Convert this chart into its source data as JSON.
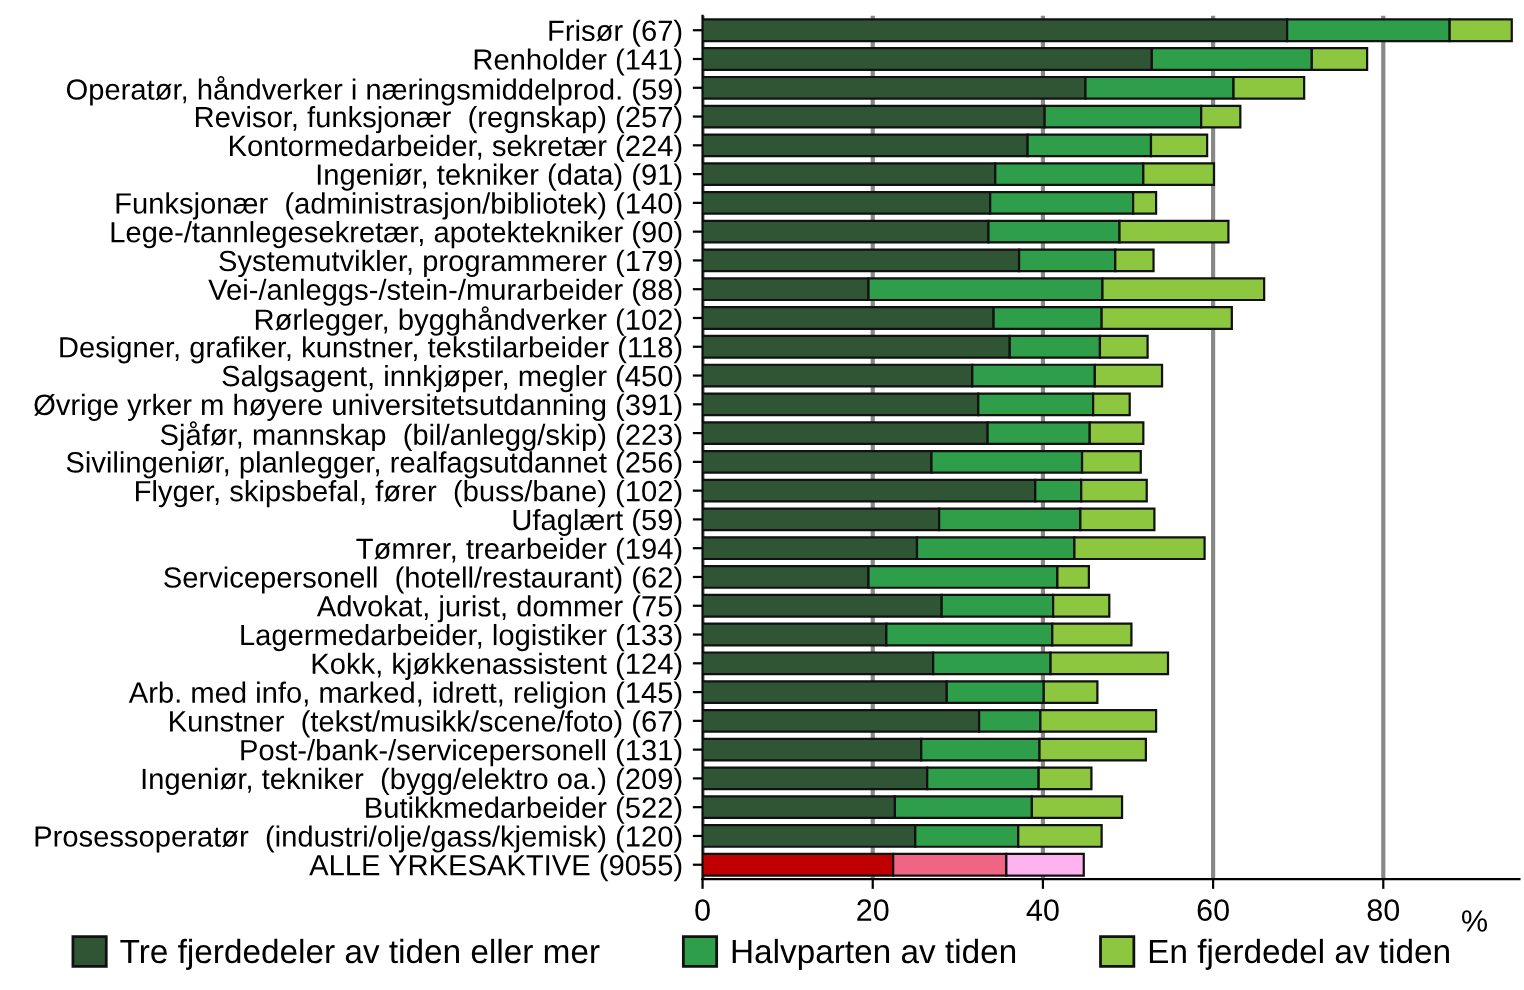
{
  "chart_data": {
    "type": "bar",
    "orientation": "horizontal",
    "stacked": true,
    "xlabel": "%",
    "categories": [
      "Frisør (67)",
      "Renholder (141)",
      "Operatør, håndverker i næringsmiddelprod. (59)",
      "Revisor, funksjonær  (regnskap) (257)",
      "Kontormedarbeider, sekretær (224)",
      "Ingeniør, tekniker (data) (91)",
      "Funksjonær  (administrasjon/bibliotek) (140)",
      "Lege-/tannlegesekretær, apotektekniker (90)",
      "Systemutvikler, programmerer (179)",
      "Vei-/anleggs-/stein-/murarbeider (88)",
      "Rørlegger, bygghåndverker (102)",
      "Designer, grafiker, kunstner, tekstilarbeider (118)",
      "Salgsagent, innkjøper, megler (450)",
      "Øvrige yrker m høyere universitetsutdanning (391)",
      "Sjåfør, mannskap  (bil/anlegg/skip) (223)",
      "Sivilingeniør, planlegger, realfagsutdannet (256)",
      "Flyger, skipsbefal, fører  (buss/bane) (102)",
      "Ufaglært (59)",
      "Tømrer, trearbeider (194)",
      "Servicepersonell  (hotell/restaurant) (62)",
      "Advokat, jurist, dommer (75)",
      "Lagermedarbeider, logistiker (133)",
      "Kokk, kjøkkenassistent (124)",
      "Arb. med info, marked, idrett, religion (145)",
      "Kunstner  (tekst/musikk/scene/foto) (67)",
      "Post-/bank-/servicepersonell (131)",
      "Ingeniør, tekniker  (bygg/elektro oa.) (209)",
      "Butikkmedarbeider (522)",
      "Prosessoperatør  (industri/olje/gass/kjemisk) (120)",
      "ALLE YRKESAKTIVE (9055)"
    ],
    "series": [
      {
        "name": "Tre fjerdedeler av tiden eller mer",
        "color": "#2f5535",
        "colors": [
          "#2f5535",
          "#2f5535",
          "#2f5535",
          "#2f5535",
          "#2f5535",
          "#2f5535",
          "#2f5535",
          "#2f5535",
          "#2f5535",
          "#2f5535",
          "#2f5535",
          "#2f5535",
          "#2f5535",
          "#2f5535",
          "#2f5535",
          "#2f5535",
          "#2f5535",
          "#2f5535",
          "#2f5535",
          "#2f5535",
          "#2f5535",
          "#2f5535",
          "#2f5535",
          "#2f5535",
          "#2f5535",
          "#2f5535",
          "#2f5535",
          "#2f5535",
          "#2f5535",
          "#c00000"
        ],
        "values": [
          68.7,
          52.8,
          45.0,
          40.2,
          38.2,
          34.4,
          33.8,
          33.6,
          37.2,
          19.5,
          34.2,
          36.1,
          31.7,
          32.4,
          33.5,
          26.9,
          39.1,
          27.8,
          25.2,
          19.5,
          28.1,
          21.6,
          27.1,
          28.7,
          32.5,
          25.7,
          26.4,
          22.6,
          25.0,
          22.4
        ]
      },
      {
        "name": "Halvparten av tiden",
        "color": "#2e9e4b",
        "colors": [
          "#2e9e4b",
          "#2e9e4b",
          "#2e9e4b",
          "#2e9e4b",
          "#2e9e4b",
          "#2e9e4b",
          "#2e9e4b",
          "#2e9e4b",
          "#2e9e4b",
          "#2e9e4b",
          "#2e9e4b",
          "#2e9e4b",
          "#2e9e4b",
          "#2e9e4b",
          "#2e9e4b",
          "#2e9e4b",
          "#2e9e4b",
          "#2e9e4b",
          "#2e9e4b",
          "#2e9e4b",
          "#2e9e4b",
          "#2e9e4b",
          "#2e9e4b",
          "#2e9e4b",
          "#2e9e4b",
          "#2e9e4b",
          "#2e9e4b",
          "#2e9e4b",
          "#2e9e4b",
          "#f06584"
        ],
        "values": [
          19.1,
          18.8,
          17.4,
          18.4,
          14.5,
          17.4,
          16.8,
          15.4,
          11.3,
          27.5,
          12.7,
          10.6,
          14.4,
          13.5,
          12.0,
          17.7,
          5.4,
          16.6,
          18.5,
          22.2,
          13.1,
          19.5,
          13.8,
          11.4,
          7.2,
          13.9,
          13.1,
          16.1,
          12.1,
          13.3
        ]
      },
      {
        "name": "En fjerdedel av tiden",
        "color": "#8dc63f",
        "colors": [
          "#8dc63f",
          "#8dc63f",
          "#8dc63f",
          "#8dc63f",
          "#8dc63f",
          "#8dc63f",
          "#8dc63f",
          "#8dc63f",
          "#8dc63f",
          "#8dc63f",
          "#8dc63f",
          "#8dc63f",
          "#8dc63f",
          "#8dc63f",
          "#8dc63f",
          "#8dc63f",
          "#8dc63f",
          "#8dc63f",
          "#8dc63f",
          "#8dc63f",
          "#8dc63f",
          "#8dc63f",
          "#8dc63f",
          "#8dc63f",
          "#8dc63f",
          "#8dc63f",
          "#8dc63f",
          "#8dc63f",
          "#8dc63f",
          "#ffb3ee"
        ],
        "values": [
          7.3,
          6.5,
          8.3,
          4.6,
          6.6,
          8.3,
          2.7,
          12.8,
          4.5,
          19.0,
          15.3,
          5.6,
          7.9,
          4.3,
          6.3,
          6.9,
          7.7,
          8.7,
          15.3,
          3.7,
          6.6,
          9.3,
          13.8,
          6.3,
          13.6,
          12.5,
          6.2,
          10.6,
          9.8,
          9.1
        ]
      }
    ],
    "xlim": [
      0,
      96
    ],
    "xticks": [
      0,
      20,
      40,
      60,
      80
    ],
    "grid": "x",
    "legend": "bottom"
  }
}
